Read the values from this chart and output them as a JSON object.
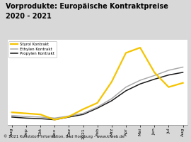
{
  "title_line1": "Vorprodukte: Europäische Kontraktpreise",
  "title_line2": "2020 - 2021",
  "title_bg_color": "#F5C400",
  "title_fontsize": 7.0,
  "plot_bg_color": "#D8D8D8",
  "footer": "© 2021 Kunststoff Information, Bad Homburg - www.kiweb.de",
  "footer_bg_color": "#888888",
  "x_labels": [
    "Aug",
    "Sep",
    "Okt",
    "Nov",
    "Dez",
    "2021",
    "Feb",
    "Mrz",
    "Apr",
    "Mai",
    "Jun",
    "Jul",
    "Aug"
  ],
  "styrol": [
    102,
    100,
    98,
    88,
    94,
    108,
    120,
    160,
    215,
    225,
    178,
    150,
    158
  ],
  "ethylen": [
    96,
    94,
    93,
    91,
    95,
    100,
    112,
    128,
    150,
    163,
    172,
    182,
    188
  ],
  "propylen": [
    93,
    91,
    90,
    88,
    93,
    98,
    110,
    124,
    143,
    156,
    165,
    173,
    178
  ],
  "styrol_color": "#F5C400",
  "ethylen_color": "#AAAAAA",
  "propylen_color": "#1A1A1A",
  "legend_labels": [
    "Styrol Kontrakt",
    "Ethylen Kontrakt",
    "Propylen Kontrakt"
  ],
  "ylim": [
    78,
    240
  ]
}
